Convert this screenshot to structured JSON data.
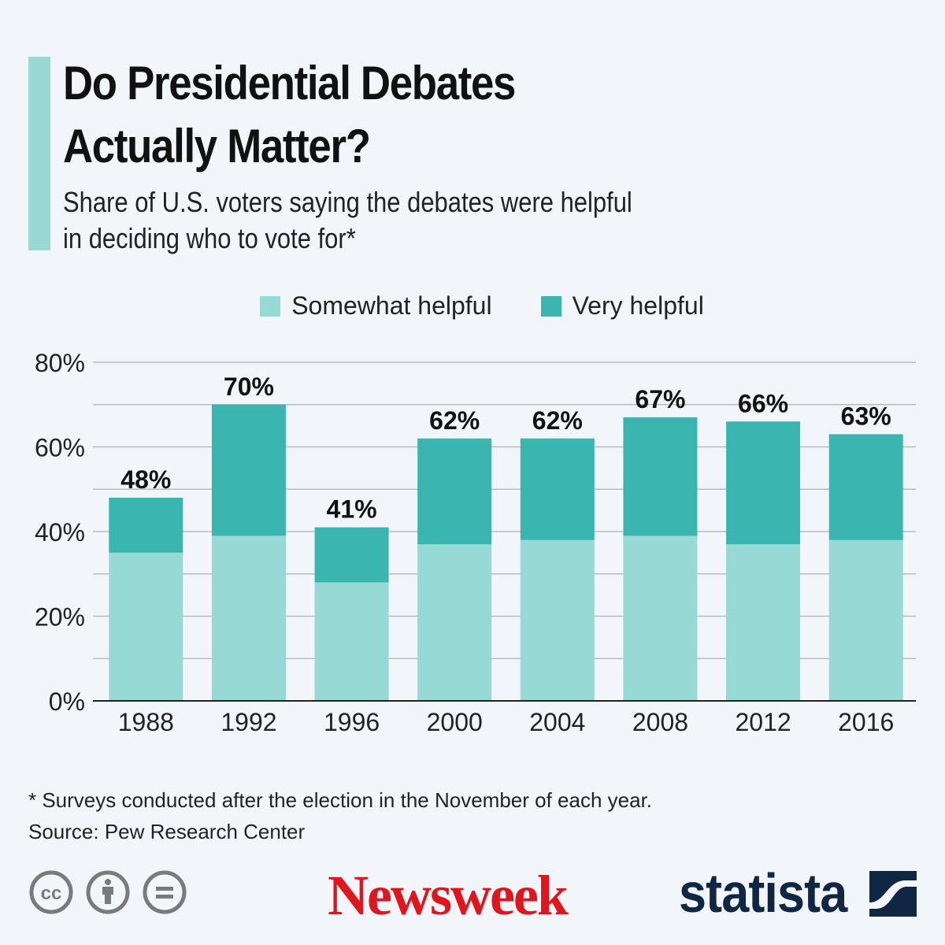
{
  "header": {
    "title_line1": "Do Presidential Debates",
    "title_line2": "Actually Matter?",
    "subtitle_line1": "Share of U.S. voters saying the debates were helpful",
    "subtitle_line2": "in deciding who to vote for*"
  },
  "colors": {
    "somewhat": "#96d9d5",
    "very": "#3ab5b0",
    "accent": "#9ad8d4",
    "background": "#f2f6fa",
    "newsweek": "#e0161f",
    "statista": "#0f2742"
  },
  "chart_data": {
    "type": "bar",
    "stacked": true,
    "title": "Do Presidential Debates Actually Matter?",
    "subtitle": "Share of U.S. voters saying the debates were helpful in deciding who to vote for*",
    "categories": [
      "1988",
      "1992",
      "1996",
      "2000",
      "2004",
      "2008",
      "2012",
      "2016"
    ],
    "series": [
      {
        "name": "Somewhat helpful",
        "values": [
          35,
          39,
          28,
          37,
          38,
          39,
          37,
          38
        ]
      },
      {
        "name": "Very helpful",
        "values": [
          13,
          31,
          13,
          25,
          24,
          28,
          29,
          25
        ]
      }
    ],
    "totals": [
      48,
      70,
      41,
      62,
      62,
      67,
      66,
      63
    ],
    "total_labels": [
      "48%",
      "70%",
      "41%",
      "62%",
      "62%",
      "67%",
      "66%",
      "63%"
    ],
    "yticks": [
      0,
      20,
      40,
      60,
      80
    ],
    "ytick_labels": [
      "0%",
      "20%",
      "40%",
      "60%",
      "80%"
    ],
    "ylim": [
      0,
      80
    ],
    "grid": true,
    "legend": "top-center",
    "xlabel": "",
    "ylabel": ""
  },
  "footer": {
    "note": "* Surveys conducted after the election in the November of each year.",
    "source": "Source: Pew Research Center",
    "newsweek": "Newsweek",
    "statista": "statista"
  },
  "icons": [
    "cc-icon",
    "attribution-icon",
    "no-derivatives-icon",
    "statista-logo-mark"
  ]
}
